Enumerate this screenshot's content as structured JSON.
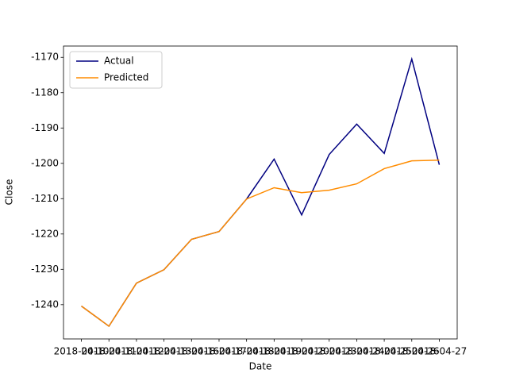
{
  "chart_data": {
    "type": "line",
    "xlabel": "Date",
    "ylabel": "Close",
    "categories": [
      "2018-04-10",
      "2018-04-11",
      "2018-04-12",
      "2018-04-13",
      "2018-04-16",
      "2018-04-17",
      "2018-04-18",
      "2018-04-19",
      "2018-04-20",
      "2018-04-23",
      "2018-04-24",
      "2018-04-25",
      "2018-04-26",
      "2018-04-27"
    ],
    "series": [
      {
        "name": "Actual",
        "color": "#000080",
        "values": [
          -1240.4,
          -1246.1,
          -1233.9,
          -1230.1,
          -1221.5,
          -1219.3,
          -1210.1,
          -1198.8,
          -1214.6,
          -1197.5,
          -1188.9,
          -1197.2,
          -1170.5,
          -1200.4
        ]
      },
      {
        "name": "Predicted",
        "color": "#ff8c00",
        "values": [
          -1240.4,
          -1246.1,
          -1233.9,
          -1230.1,
          -1221.5,
          -1219.3,
          -1210.1,
          -1206.9,
          -1208.3,
          -1207.6,
          -1205.8,
          -1201.5,
          -1199.3,
          -1199.1
        ]
      }
    ],
    "ylim": [
      -1249.7,
      -1166.8
    ],
    "yticks": [
      -1240,
      -1230,
      -1220,
      -1210,
      -1200,
      -1190,
      -1180,
      -1170
    ],
    "legend": "upper left",
    "grid": false
  }
}
